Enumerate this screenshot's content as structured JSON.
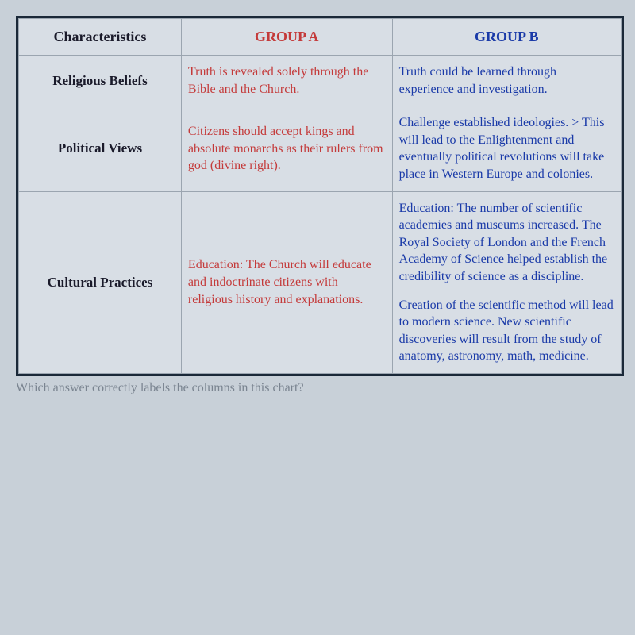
{
  "table": {
    "headers": {
      "characteristics": "Characteristics",
      "groupA": "GROUP A",
      "groupB": "GROUP B"
    },
    "rows": [
      {
        "characteristic": "Religious Beliefs",
        "groupA": "Truth is revealed solely through the Bible and the Church.",
        "groupB": "Truth could be learned through experience and investigation."
      },
      {
        "characteristic": "Political Views",
        "groupA": "Citizens should accept kings and absolute monarchs as their rulers from god (divine right).",
        "groupB": "Challenge established ideologies. > This will lead to the Enlightenment and eventually political revolutions will take place in Western Europe and colonies."
      },
      {
        "characteristic": "Cultural Practices",
        "groupA": "Education: The Church will educate and indoctrinate citizens with religious history and explanations.",
        "groupB": "Education: The number of scientific academies and museums increased. The Royal Society of London and the French Academy of Science helped establish the credibility of science as a discipline.",
        "groupB2": "Creation of the scientific method will lead to modern science. New scientific discoveries will result from the study of anatomy, astronomy, math, medicine."
      }
    ]
  },
  "question": "Which answer correctly labels the columns in this chart?",
  "colors": {
    "border": "#1a2838",
    "cellBorder": "#9ba5b0",
    "background": "#d8dee5",
    "pageBackground": "#c8d0d8",
    "charText": "#1a1a2a",
    "groupAText": "#c43a3a",
    "groupBText": "#1a3aa8",
    "questionText": "#7a8490"
  },
  "typography": {
    "fontFamily": "Georgia, Times New Roman, serif",
    "headerFontSize": 18,
    "rowLabelFontSize": 17,
    "cellFontSize": 16,
    "questionFontSize": 16
  }
}
